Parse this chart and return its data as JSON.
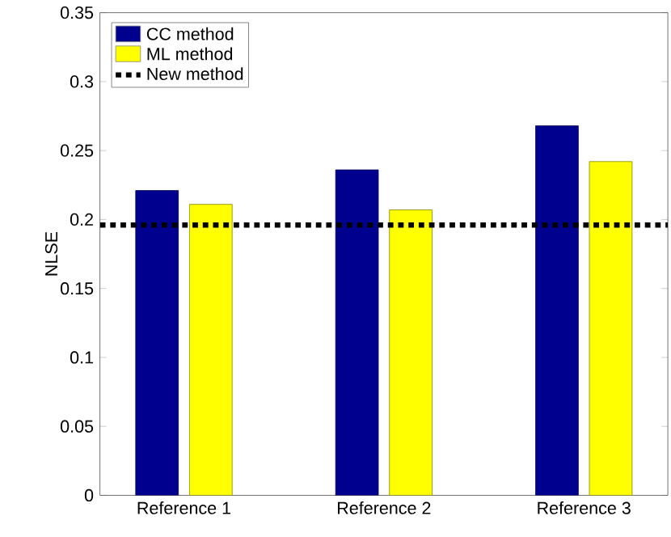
{
  "chart_data": {
    "type": "bar",
    "ylabel": "NLSE",
    "categories": [
      "Reference 1",
      "Reference 2",
      "Reference 3"
    ],
    "series": [
      {
        "name": "CC method",
        "color": "#00008f",
        "values": [
          0.221,
          0.236,
          0.268
        ]
      },
      {
        "name": "ML method",
        "color": "#ffff00",
        "values": [
          0.211,
          0.207,
          0.242
        ]
      }
    ],
    "ylim": [
      0,
      0.35
    ],
    "yticks": [
      0,
      0.05,
      0.1,
      0.15,
      0.2,
      0.25,
      0.3,
      0.35
    ],
    "ref_lines": [
      {
        "axis": "y",
        "value": 0.196,
        "label": "New method",
        "color": "#000000",
        "line_style": "dotted"
      }
    ],
    "legend": "top left"
  }
}
